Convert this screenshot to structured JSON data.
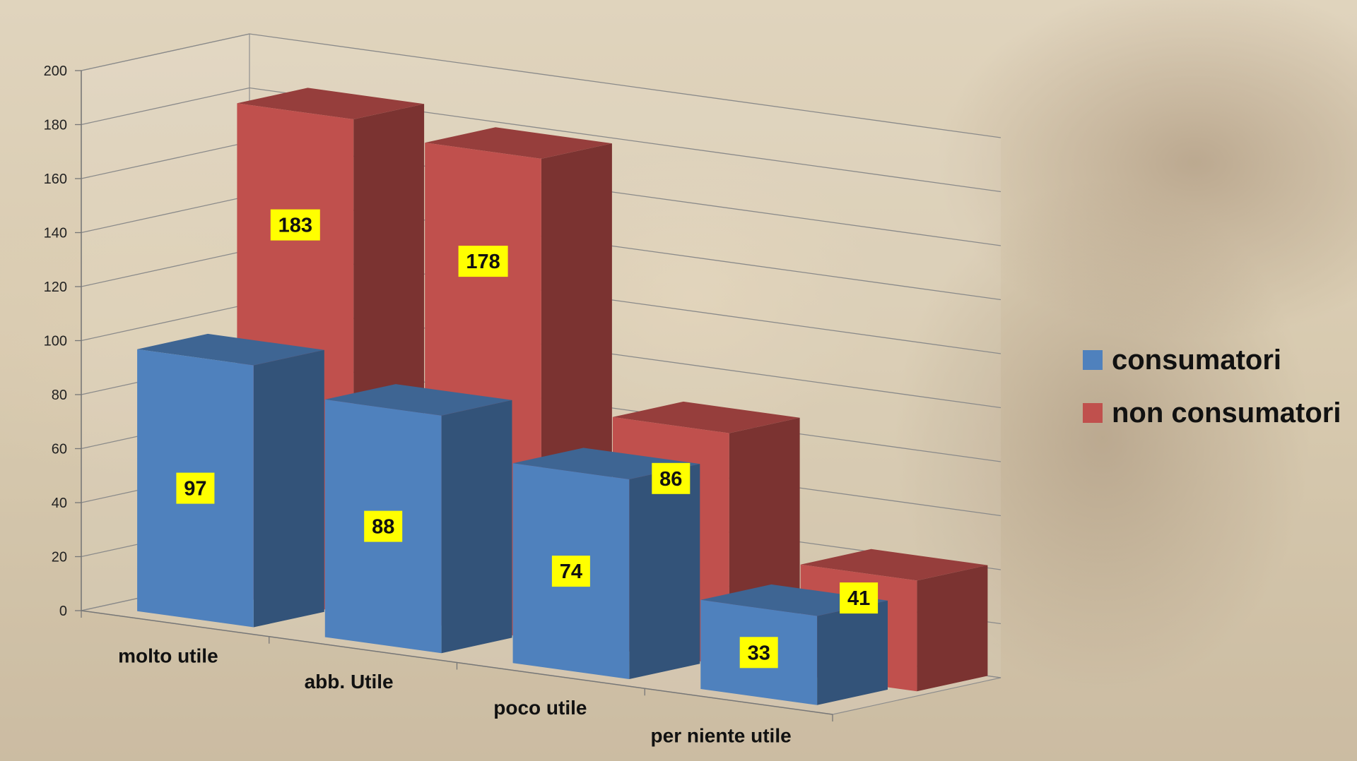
{
  "chart_data": {
    "type": "bar",
    "categories": [
      "molto utile",
      "abb. Utile",
      "poco utile",
      "per niente utile"
    ],
    "series": [
      {
        "name": "consumatori",
        "values": [
          97,
          88,
          74,
          33
        ],
        "color": "#4f81bd"
      },
      {
        "name": "non consumatori",
        "values": [
          183,
          178,
          86,
          41
        ],
        "color": "#c0504d"
      }
    ],
    "y_ticks": [
      0,
      20,
      40,
      60,
      80,
      100,
      120,
      140,
      160,
      180,
      200
    ],
    "ylim": [
      0,
      200
    ],
    "grid": true,
    "legend_position": "right",
    "data_label_background": "#ffff00",
    "style": "3d-column"
  }
}
